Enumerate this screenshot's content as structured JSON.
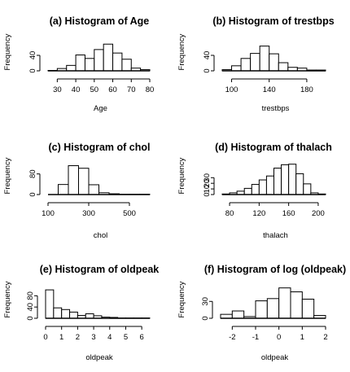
{
  "chart_data": [
    {
      "type": "bar",
      "title": "(a) Histogram of Age",
      "xlabel": "Age",
      "ylabel": "Frequency",
      "bins": [
        [
          25,
          30
        ],
        [
          30,
          35
        ],
        [
          35,
          40
        ],
        [
          40,
          45
        ],
        [
          45,
          50
        ],
        [
          50,
          55
        ],
        [
          55,
          60
        ],
        [
          60,
          65
        ],
        [
          65,
          70
        ],
        [
          70,
          75
        ],
        [
          75,
          80
        ]
      ],
      "values": [
        1,
        6,
        14,
        41,
        32,
        55,
        69,
        46,
        30,
        7,
        3
      ],
      "xlim": [
        25,
        80
      ],
      "ylim": [
        0,
        80
      ],
      "xticks": [
        30,
        40,
        50,
        60,
        70,
        80
      ],
      "yticks": [
        0,
        40
      ]
    },
    {
      "type": "bar",
      "title": "(b) Histogram of trestbps",
      "xlabel": "trestbps",
      "ylabel": "Frequency",
      "bins": [
        [
          90,
          100
        ],
        [
          100,
          110
        ],
        [
          110,
          120
        ],
        [
          120,
          130
        ],
        [
          130,
          140
        ],
        [
          140,
          150
        ],
        [
          150,
          160
        ],
        [
          160,
          170
        ],
        [
          170,
          180
        ],
        [
          180,
          190
        ],
        [
          190,
          200
        ]
      ],
      "values": [
        3,
        13,
        32,
        45,
        64,
        44,
        21,
        9,
        7,
        2,
        2
      ],
      "xlim": [
        90,
        200
      ],
      "ylim": [
        0,
        80
      ],
      "xticks": [
        100,
        140,
        180
      ],
      "yticks": [
        0,
        40
      ]
    },
    {
      "type": "bar",
      "title": "(c) Histogram of chol",
      "xlabel": "chol",
      "ylabel": "Frequency",
      "bins": [
        [
          100,
          150
        ],
        [
          150,
          200
        ],
        [
          200,
          250
        ],
        [
          250,
          300
        ],
        [
          300,
          350
        ],
        [
          350,
          400
        ],
        [
          400,
          450
        ],
        [
          450,
          500
        ],
        [
          500,
          550
        ],
        [
          550,
          600
        ]
      ],
      "values": [
        0,
        39,
        112,
        102,
        38,
        7,
        3,
        1,
        1,
        1
      ],
      "xlim": [
        100,
        600
      ],
      "ylim": [
        0,
        120
      ],
      "xticks": [
        100,
        300,
        500
      ],
      "yticks": [
        0,
        80
      ]
    },
    {
      "type": "bar",
      "title": "(d) Histogram of thalach",
      "xlabel": "thalach",
      "ylabel": "Frequency",
      "bins": [
        [
          70,
          80
        ],
        [
          80,
          90
        ],
        [
          90,
          100
        ],
        [
          100,
          110
        ],
        [
          110,
          120
        ],
        [
          120,
          130
        ],
        [
          130,
          140
        ],
        [
          140,
          150
        ],
        [
          150,
          160
        ],
        [
          160,
          170
        ],
        [
          170,
          180
        ],
        [
          180,
          190
        ],
        [
          190,
          200
        ],
        [
          200,
          210
        ]
      ],
      "values": [
        1,
        3,
        6,
        11,
        18,
        26,
        33,
        47,
        53,
        54,
        37,
        19,
        3,
        1
      ],
      "xlim": [
        70,
        210
      ],
      "ylim": [
        0,
        55
      ],
      "xticks": [
        80,
        120,
        160,
        200
      ],
      "yticks": [
        0,
        10,
        20,
        30
      ]
    },
    {
      "type": "bar",
      "title": "(e) Histogram of oldpeak",
      "xlabel": "oldpeak",
      "ylabel": "Frequency",
      "bins": [
        [
          0,
          0.5
        ],
        [
          0.5,
          1
        ],
        [
          1,
          1.5
        ],
        [
          1.5,
          2
        ],
        [
          2,
          2.5
        ],
        [
          2.5,
          3
        ],
        [
          3,
          3.5
        ],
        [
          3.5,
          4
        ],
        [
          4,
          4.5
        ],
        [
          4.5,
          5
        ],
        [
          5,
          5.5
        ],
        [
          5.5,
          6
        ],
        [
          6,
          6.5
        ]
      ],
      "values": [
        101,
        37,
        31,
        22,
        10,
        16,
        9,
        4,
        3,
        1,
        1,
        1,
        1
      ],
      "xlim": [
        0,
        6.5
      ],
      "ylim": [
        0,
        110
      ],
      "xticks": [
        0,
        1,
        2,
        3,
        4,
        5,
        6
      ],
      "yticks": [
        0,
        40,
        80
      ]
    },
    {
      "type": "bar",
      "title": "(f) Histogram of log (oldpeak)",
      "xlabel": "oldpeak",
      "ylabel": "Frequency",
      "bins": [
        [
          -2.5,
          -2
        ],
        [
          -2,
          -1.5
        ],
        [
          -1.5,
          -1
        ],
        [
          -1,
          -0.5
        ],
        [
          -0.5,
          0
        ],
        [
          0,
          0.5
        ],
        [
          0.5,
          1
        ],
        [
          1,
          1.5
        ],
        [
          1.5,
          2
        ]
      ],
      "values": [
        7,
        13,
        3,
        31,
        35,
        54,
        47,
        34,
        5
      ],
      "xlim": [
        -2.5,
        2
      ],
      "ylim": [
        0,
        55
      ],
      "xticks": [
        -2,
        -1,
        0,
        1,
        2
      ],
      "yticks": [
        0,
        30
      ]
    }
  ]
}
